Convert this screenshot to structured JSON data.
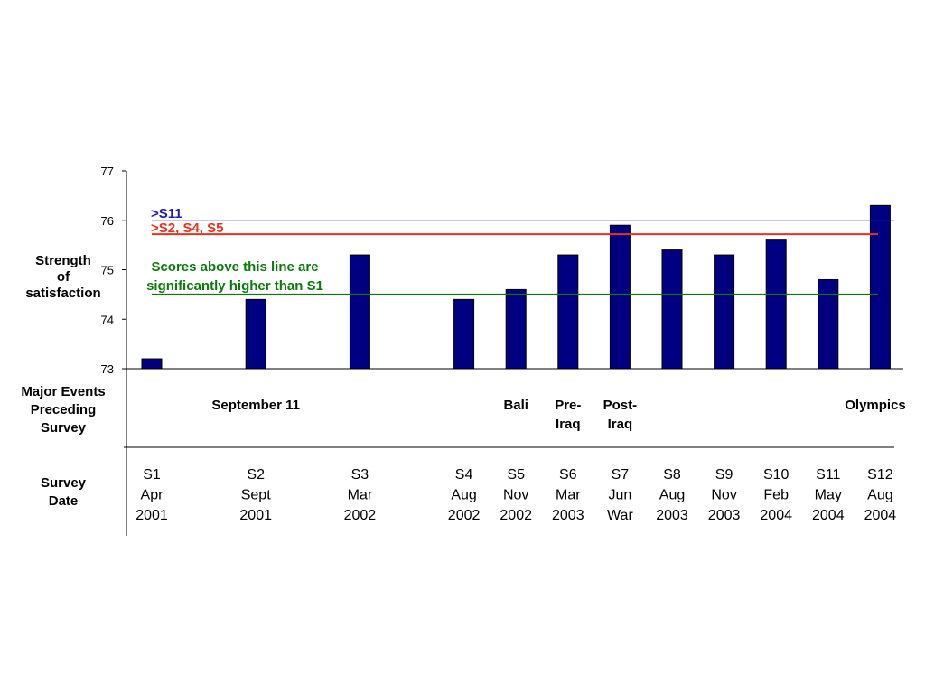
{
  "chart_data": {
    "type": "bar",
    "ylabel": [
      "Strength",
      "of",
      "satisfaction"
    ],
    "ylim": [
      73,
      77
    ],
    "yticks": [
      "73",
      "74",
      "75",
      "76",
      "77"
    ],
    "bar_color": "#000080",
    "categories": [
      {
        "label": [
          "S1",
          "Apr",
          "2001"
        ],
        "slot": 0,
        "value": 73.2
      },
      {
        "label": [
          "S2",
          "Sept",
          "2001"
        ],
        "slot": 2,
        "value": 74.4
      },
      {
        "label": [
          "S3",
          "Mar",
          "2002"
        ],
        "slot": 4,
        "value": 75.3
      },
      {
        "label": [
          "S4",
          "Aug",
          "2002"
        ],
        "slot": 6,
        "value": 74.4
      },
      {
        "label": [
          "S5",
          "Nov",
          "2002"
        ],
        "slot": 7,
        "value": 74.6
      },
      {
        "label": [
          "S6",
          "Mar",
          "2003"
        ],
        "slot": 8,
        "value": 75.3
      },
      {
        "label": [
          "S7",
          "Jun",
          "War"
        ],
        "slot": 9,
        "value": 75.9
      },
      {
        "label": [
          "S8",
          "Aug",
          "2003"
        ],
        "slot": 10,
        "value": 75.4
      },
      {
        "label": [
          "S9",
          "Nov",
          "2003"
        ],
        "slot": 11,
        "value": 75.3
      },
      {
        "label": [
          "S10",
          "Feb",
          "2004"
        ],
        "slot": 12,
        "value": 75.6
      },
      {
        "label": [
          "S11",
          "May",
          "2004"
        ],
        "slot": 13,
        "value": 74.8
      },
      {
        "label": [
          "S12",
          "Aug",
          "2004"
        ],
        "slot": 14,
        "value": 76.3
      }
    ],
    "reference_lines": [
      {
        "label": ">S11",
        "value": 76.0,
        "color": "#1f1fa8"
      },
      {
        "label": ">S2, S4, S5",
        "value": 75.72,
        "color": "#e8321e"
      },
      {
        "label": [
          "Scores above this line are",
          "significantly higher than S1"
        ],
        "value": 74.5,
        "color": "#0a7a0a"
      }
    ],
    "events_row_label": [
      "Major Events",
      "Preceding",
      "Survey"
    ],
    "survey_row_label": [
      "Survey",
      "Date"
    ],
    "events": [
      {
        "slot": 2,
        "label": [
          "September 11"
        ]
      },
      {
        "slot": 7,
        "label": [
          "Bali"
        ]
      },
      {
        "slot": 8,
        "label": [
          "Pre-",
          "Iraq"
        ]
      },
      {
        "slot": 9,
        "label": [
          "Post-",
          "Iraq"
        ]
      },
      {
        "slot": 14,
        "label": [
          "Olympics"
        ]
      }
    ]
  }
}
